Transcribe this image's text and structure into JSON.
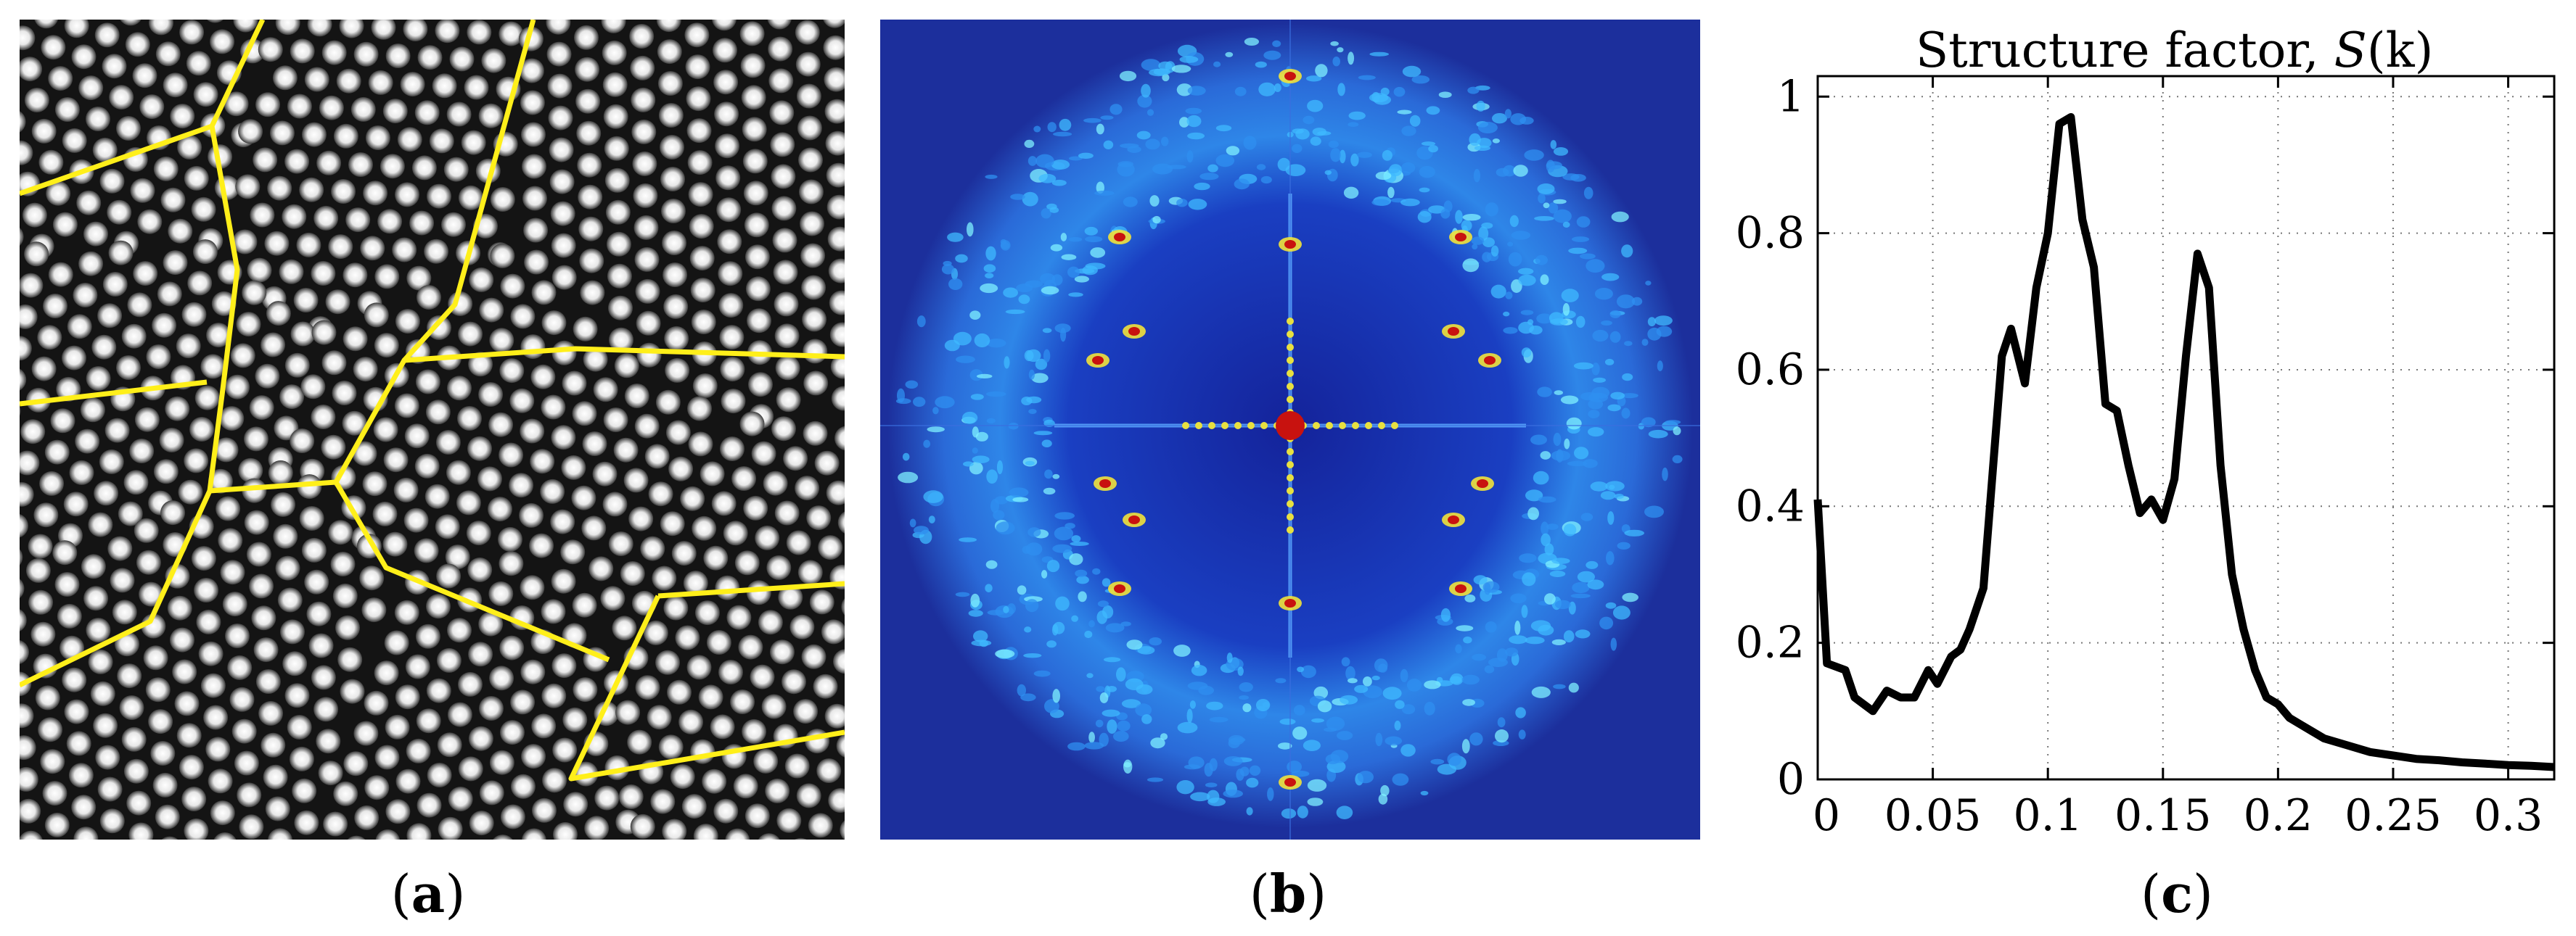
{
  "captions": {
    "a": "a",
    "b": "b",
    "c": "c"
  },
  "panel_a": {
    "dot_color": "#e8e8e8",
    "boundary_color": "#ffef1a",
    "background": "#141414"
  },
  "panel_b": {
    "background": "#1c2f9c",
    "peak_color": "#c8120f",
    "ring_color": "#3fb9ff"
  },
  "chart_data": {
    "type": "line",
    "title_prefix": "Structure factor, ",
    "title_var": "S",
    "title_arg": "(k)",
    "xlabel": "",
    "ylabel": "",
    "xlim": [
      0,
      0.32
    ],
    "ylim": [
      0,
      1.03
    ],
    "grid": true,
    "line_color": "#000000",
    "x_ticks": [
      0,
      0.05,
      0.1,
      0.15,
      0.2,
      0.25,
      0.3
    ],
    "x_tick_labels": [
      "0",
      "0.05",
      "0.1",
      "0.15",
      "0.2",
      "0.25",
      "0.3"
    ],
    "y_ticks": [
      0,
      0.2,
      0.4,
      0.6,
      0.8,
      1.0
    ],
    "y_tick_labels": [
      "0",
      "0.2",
      "0.4",
      "0.6",
      "0.8",
      "1"
    ],
    "series": [
      {
        "x": [
          0,
          0.004,
          0.012,
          0.016,
          0.024,
          0.03,
          0.036,
          0.042,
          0.048,
          0.052,
          0.058,
          0.062,
          0.066,
          0.072,
          0.076,
          0.08,
          0.084,
          0.09,
          0.095,
          0.1,
          0.105,
          0.11,
          0.115,
          0.12,
          0.125,
          0.13,
          0.135,
          0.14,
          0.145,
          0.15,
          0.155,
          0.16,
          0.165,
          0.17,
          0.175,
          0.18,
          0.185,
          0.19,
          0.195,
          0.2,
          0.205,
          0.21,
          0.215,
          0.22,
          0.23,
          0.24,
          0.25,
          0.26,
          0.27,
          0.28,
          0.29,
          0.3,
          0.31,
          0.32
        ],
        "y": [
          0.41,
          0.17,
          0.16,
          0.12,
          0.1,
          0.13,
          0.12,
          0.12,
          0.16,
          0.14,
          0.18,
          0.19,
          0.22,
          0.28,
          0.45,
          0.62,
          0.66,
          0.58,
          0.72,
          0.8,
          0.96,
          0.97,
          0.82,
          0.75,
          0.55,
          0.54,
          0.46,
          0.39,
          0.41,
          0.38,
          0.44,
          0.62,
          0.77,
          0.72,
          0.46,
          0.3,
          0.22,
          0.16,
          0.12,
          0.11,
          0.09,
          0.08,
          0.07,
          0.06,
          0.05,
          0.04,
          0.035,
          0.03,
          0.028,
          0.025,
          0.023,
          0.021,
          0.02,
          0.018
        ]
      }
    ]
  }
}
